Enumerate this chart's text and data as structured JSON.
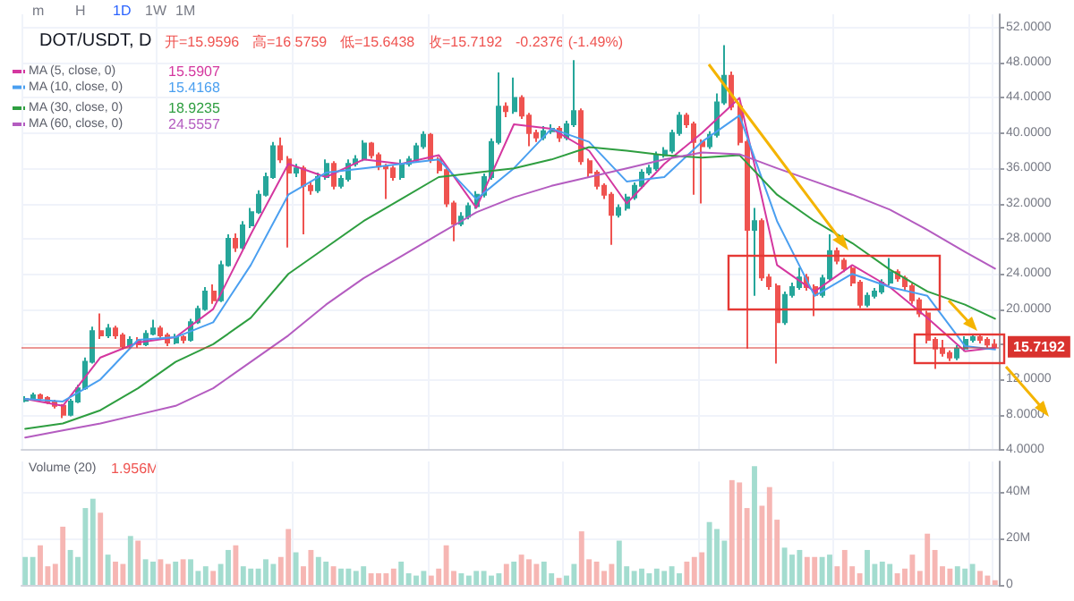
{
  "chart_data": [
    {
      "type": "candlestick",
      "title": "DOT/USDT, D",
      "categories": [
        null,
        null,
        null,
        null,
        null,
        null,
        null,
        null,
        null,
        null,
        null,
        null,
        null,
        null,
        null,
        null,
        null,
        null,
        null,
        null,
        null,
        null,
        null,
        null,
        null,
        null,
        null,
        null,
        null,
        null,
        null,
        null,
        null,
        null,
        null,
        null,
        null,
        null,
        null,
        null,
        null,
        null,
        null,
        null,
        null,
        null,
        null,
        null,
        null,
        null,
        null,
        null,
        null,
        null,
        null,
        null,
        null,
        null,
        null,
        null,
        null,
        null,
        null,
        null,
        null,
        null,
        null,
        null,
        null,
        null,
        null,
        null,
        null,
        null,
        null,
        null,
        null,
        null,
        null,
        null,
        null,
        null,
        null,
        null,
        null,
        null,
        null,
        null,
        null,
        null,
        null,
        null,
        null,
        null,
        null,
        null,
        null,
        null,
        null,
        null,
        null,
        null,
        null,
        null,
        null,
        null,
        null,
        null,
        null,
        null,
        null,
        null,
        null,
        null,
        null,
        null,
        null,
        null,
        null,
        null,
        null,
        null,
        null,
        null,
        null,
        null,
        null,
        null,
        null,
        null
      ],
      "ohlc": [
        [
          9.6,
          10.1,
          9.4,
          9.8
        ],
        [
          9.8,
          10.5,
          9.6,
          10.2
        ],
        [
          10.2,
          10.4,
          9.7,
          9.9
        ],
        [
          9.9,
          10.1,
          9.2,
          9.5
        ],
        [
          9.5,
          9.7,
          8.7,
          9.0
        ],
        [
          9.0,
          9.2,
          7.6,
          8.0
        ],
        [
          8.0,
          9.8,
          7.8,
          9.5
        ],
        [
          9.5,
          11.4,
          9.3,
          11.0
        ],
        [
          11.0,
          14.5,
          10.8,
          14.0
        ],
        [
          14.0,
          18.0,
          13.8,
          17.5
        ],
        [
          17.5,
          19.5,
          16.6,
          17.0
        ],
        [
          17.0,
          18.3,
          16.7,
          17.8
        ],
        [
          17.8,
          18.1,
          16.6,
          17.0
        ],
        [
          17.0,
          17.3,
          15.4,
          15.8
        ],
        [
          15.8,
          16.9,
          15.5,
          16.5
        ],
        [
          16.5,
          16.8,
          15.6,
          16.0
        ],
        [
          16.0,
          17.6,
          15.8,
          17.2
        ],
        [
          17.2,
          18.8,
          17.0,
          17.8
        ],
        [
          17.8,
          18.1,
          16.7,
          17.0
        ],
        [
          17.0,
          17.3,
          15.8,
          16.2
        ],
        [
          16.2,
          17.2,
          16.0,
          16.8
        ],
        [
          16.8,
          17.0,
          16.1,
          16.5
        ],
        [
          16.5,
          18.9,
          16.3,
          18.5
        ],
        [
          18.5,
          20.4,
          18.3,
          20.0
        ],
        [
          20.0,
          22.5,
          19.8,
          22.0
        ],
        [
          22.0,
          22.8,
          20.6,
          21.0
        ],
        [
          21.0,
          25.5,
          20.8,
          25.0
        ],
        [
          25.0,
          28.5,
          24.8,
          28.0
        ],
        [
          28.0,
          28.6,
          26.5,
          27.0
        ],
        [
          27.0,
          30.0,
          26.8,
          29.5
        ],
        [
          29.5,
          31.5,
          29.2,
          31.0
        ],
        [
          31.0,
          33.5,
          30.8,
          33.0
        ],
        [
          33.0,
          35.5,
          32.8,
          35.0
        ],
        [
          35.0,
          39.0,
          34.8,
          38.5
        ],
        [
          38.5,
          39.5,
          36.6,
          37.0
        ],
        [
          37.0,
          37.4,
          27.0,
          35.5
        ],
        [
          35.5,
          36.5,
          35.0,
          36.0
        ],
        [
          36.0,
          36.3,
          28.5,
          34.0
        ],
        [
          34.0,
          34.4,
          33.0,
          33.5
        ],
        [
          33.5,
          35.5,
          33.2,
          35.0
        ],
        [
          35.0,
          37.0,
          34.7,
          36.5
        ],
        [
          36.5,
          36.8,
          33.6,
          34.0
        ],
        [
          34.0,
          35.2,
          33.7,
          34.8
        ],
        [
          34.8,
          37.0,
          34.5,
          36.5
        ],
        [
          36.5,
          37.5,
          36.2,
          37.0
        ],
        [
          37.0,
          39.2,
          36.8,
          38.8
        ],
        [
          38.8,
          39.0,
          37.1,
          37.5
        ],
        [
          37.5,
          37.8,
          35.8,
          36.2
        ],
        [
          36.2,
          36.5,
          32.5,
          36.0
        ],
        [
          36.0,
          36.3,
          34.6,
          35.0
        ],
        [
          35.0,
          37.0,
          34.7,
          36.5
        ],
        [
          36.5,
          37.4,
          36.2,
          37.0
        ],
        [
          37.0,
          38.9,
          36.7,
          38.5
        ],
        [
          38.5,
          40.2,
          38.2,
          39.8
        ],
        [
          39.8,
          40.0,
          36.6,
          37.0
        ],
        [
          37.0,
          37.3,
          35.4,
          35.8
        ],
        [
          35.8,
          36.1,
          31.6,
          32.0
        ],
        [
          32.0,
          32.3,
          27.7,
          29.7
        ],
        [
          29.7,
          31.0,
          29.4,
          30.5
        ],
        [
          30.5,
          32.1,
          30.2,
          31.7
        ],
        [
          31.7,
          33.4,
          31.4,
          33.0
        ],
        [
          33.0,
          35.4,
          32.7,
          35.0
        ],
        [
          35.0,
          39.4,
          34.7,
          39.0
        ],
        [
          39.0,
          46.9,
          38.7,
          43.0
        ],
        [
          43.0,
          43.5,
          41.8,
          42.5
        ],
        [
          42.5,
          46.3,
          42.2,
          44.0
        ],
        [
          44.0,
          44.3,
          41.6,
          42.0
        ],
        [
          42.0,
          42.3,
          38.5,
          40.0
        ],
        [
          40.0,
          40.4,
          39.0,
          39.5
        ],
        [
          39.5,
          40.8,
          39.2,
          40.2
        ],
        [
          40.2,
          41.0,
          39.9,
          40.5
        ],
        [
          40.5,
          40.8,
          39.0,
          39.5
        ],
        [
          39.5,
          41.4,
          39.2,
          41.0
        ],
        [
          41.0,
          48.3,
          40.7,
          42.5
        ],
        [
          42.5,
          42.8,
          36.4,
          36.8
        ],
        [
          36.8,
          37.1,
          35.0,
          35.5
        ],
        [
          35.5,
          35.8,
          33.6,
          34.0
        ],
        [
          34.0,
          34.3,
          32.5,
          33.0
        ],
        [
          33.0,
          33.3,
          27.3,
          30.7
        ],
        [
          30.7,
          31.9,
          30.4,
          31.5
        ],
        [
          31.5,
          33.1,
          31.2,
          32.7
        ],
        [
          32.7,
          34.4,
          32.4,
          34.0
        ],
        [
          34.0,
          35.9,
          33.7,
          35.5
        ],
        [
          35.5,
          36.4,
          35.2,
          36.0
        ],
        [
          36.0,
          37.9,
          35.7,
          37.5
        ],
        [
          37.5,
          38.4,
          37.2,
          38.0
        ],
        [
          38.0,
          40.4,
          37.7,
          40.0
        ],
        [
          40.0,
          42.4,
          39.7,
          42.0
        ],
        [
          42.0,
          42.3,
          40.6,
          41.0
        ],
        [
          41.0,
          41.3,
          33.0,
          39.0
        ],
        [
          39.0,
          39.3,
          32.0,
          38.5
        ],
        [
          38.5,
          40.2,
          38.2,
          39.8
        ],
        [
          39.8,
          44.5,
          39.5,
          43.5
        ],
        [
          43.5,
          50.0,
          43.2,
          46.5
        ],
        [
          46.5,
          47.0,
          42.6,
          43.0
        ],
        [
          43.0,
          43.3,
          38.6,
          39.0
        ],
        [
          39.0,
          39.3,
          15.5,
          29.0
        ],
        [
          29.0,
          31.5,
          21.5,
          30.0
        ],
        [
          30.0,
          30.3,
          23.2,
          23.6
        ],
        [
          23.6,
          24.0,
          22.2,
          22.6
        ],
        [
          22.6,
          22.9,
          13.8,
          18.5
        ],
        [
          18.5,
          22.0,
          18.2,
          21.6
        ],
        [
          21.6,
          23.0,
          21.3,
          22.5
        ],
        [
          22.5,
          24.7,
          22.2,
          23.6
        ],
        [
          23.6,
          24.0,
          22.1,
          22.5
        ],
        [
          22.5,
          22.8,
          19.2,
          21.6
        ],
        [
          21.6,
          23.9,
          21.3,
          23.5
        ],
        [
          23.5,
          28.5,
          23.2,
          26.6
        ],
        [
          26.6,
          27.0,
          25.1,
          25.5
        ],
        [
          25.5,
          25.8,
          24.2,
          24.6
        ],
        [
          24.6,
          24.9,
          22.6,
          23.0
        ],
        [
          23.0,
          23.3,
          20.1,
          20.5
        ],
        [
          20.5,
          21.9,
          20.2,
          21.5
        ],
        [
          21.5,
          22.4,
          21.2,
          22.0
        ],
        [
          22.0,
          23.4,
          21.7,
          23.0
        ],
        [
          23.0,
          25.8,
          22.7,
          24.2
        ],
        [
          24.2,
          24.5,
          23.1,
          23.5
        ],
        [
          23.5,
          23.8,
          22.2,
          22.6
        ],
        [
          22.6,
          22.9,
          20.6,
          21.0
        ],
        [
          21.0,
          21.3,
          19.1,
          19.5
        ],
        [
          19.5,
          19.8,
          16.1,
          16.5
        ],
        [
          16.5,
          16.8,
          13.2,
          15.5
        ],
        [
          15.5,
          16.5,
          14.6,
          15.0
        ],
        [
          15.0,
          15.3,
          14.1,
          14.5
        ],
        [
          14.5,
          15.9,
          14.2,
          15.5
        ],
        [
          15.5,
          16.9,
          15.2,
          16.5
        ],
        [
          16.5,
          17.2,
          16.2,
          16.8
        ],
        [
          16.8,
          17.1,
          16.1,
          16.5
        ],
        [
          16.5,
          16.8,
          15.6,
          15.9596
        ],
        [
          15.9596,
          16.5759,
          15.6438,
          15.7192
        ]
      ],
      "colors": [
        "#26a69a",
        "#26a69a",
        "#ef5350",
        "#ef5350",
        "#ef5350",
        "#ef5350",
        "#26a69a",
        "#26a69a",
        "#26a69a",
        "#26a69a",
        "#ef5350",
        "#26a69a",
        "#ef5350",
        "#ef5350",
        "#26a69a",
        "#ef5350",
        "#26a69a",
        "#26a69a",
        "#ef5350",
        "#ef5350",
        "#26a69a",
        "#ef5350",
        "#26a69a",
        "#26a69a",
        "#26a69a",
        "#ef5350",
        "#26a69a",
        "#26a69a",
        "#ef5350",
        "#26a69a",
        "#26a69a",
        "#26a69a",
        "#26a69a",
        "#26a69a",
        "#ef5350",
        "#ef5350",
        "#26a69a",
        "#ef5350",
        "#ef5350",
        "#26a69a",
        "#26a69a",
        "#ef5350",
        "#26a69a",
        "#26a69a",
        "#26a69a",
        "#26a69a",
        "#ef5350",
        "#ef5350",
        "#ef5350",
        "#ef5350",
        "#26a69a",
        "#26a69a",
        "#26a69a",
        "#26a69a",
        "#ef5350",
        "#ef5350",
        "#ef5350",
        "#ef5350",
        "#26a69a",
        "#26a69a",
        "#26a69a",
        "#26a69a",
        "#26a69a",
        "#26a69a",
        "#ef5350",
        "#26a69a",
        "#ef5350",
        "#ef5350",
        "#ef5350",
        "#26a69a",
        "#26a69a",
        "#ef5350",
        "#26a69a",
        "#26a69a",
        "#ef5350",
        "#ef5350",
        "#ef5350",
        "#ef5350",
        "#ef5350",
        "#26a69a",
        "#26a69a",
        "#26a69a",
        "#26a69a",
        "#26a69a",
        "#26a69a",
        "#26a69a",
        "#26a69a",
        "#26a69a",
        "#ef5350",
        "#ef5350",
        "#ef5350",
        "#26a69a",
        "#26a69a",
        "#26a69a",
        "#ef5350",
        "#ef5350",
        "#ef5350",
        "#26a69a",
        "#ef5350",
        "#ef5350",
        "#ef5350",
        "#26a69a",
        "#26a69a",
        "#26a69a",
        "#ef5350",
        "#ef5350",
        "#26a69a",
        "#26a69a",
        "#ef5350",
        "#ef5350",
        "#ef5350",
        "#ef5350",
        "#26a69a",
        "#26a69a",
        "#26a69a",
        "#26a69a",
        "#ef5350",
        "#ef5350",
        "#ef5350",
        "#ef5350",
        "#ef5350",
        "#ef5350",
        "#ef5350",
        "#ef5350",
        "#26a69a",
        "#26a69a",
        "#26a69a",
        "#ef5350",
        "#ef5350",
        "#ef5350"
      ],
      "series": [
        {
          "type": "line",
          "name": "MA (5, close, 0)",
          "color": "#d4379f",
          "values": [
            9.8,
            null,
            null,
            null,
            null,
            9.0,
            null,
            null,
            null,
            null,
            14.5,
            null,
            null,
            null,
            null,
            16.2,
            null,
            null,
            null,
            null,
            16.8,
            null,
            null,
            null,
            null,
            20,
            null,
            null,
            null,
            null,
            28.5,
            null,
            null,
            null,
            null,
            36.5,
            null,
            null,
            null,
            null,
            35,
            null,
            null,
            null,
            null,
            37,
            null,
            null,
            null,
            null,
            36.5,
            null,
            null,
            null,
            null,
            37.5,
            null,
            null,
            null,
            null,
            31.5,
            null,
            null,
            null,
            null,
            41,
            null,
            null,
            null,
            null,
            40.5,
            null,
            null,
            null,
            null,
            38,
            null,
            null,
            null,
            null,
            32,
            null,
            null,
            null,
            null,
            36.5,
            null,
            null,
            null,
            null,
            40,
            null,
            null,
            null,
            null,
            44,
            null,
            null,
            null,
            null,
            25,
            null,
            null,
            null,
            null,
            22,
            null,
            null,
            null,
            null,
            25,
            null,
            null,
            null,
            null,
            22.5,
            null,
            null,
            null,
            null,
            19,
            null,
            null,
            null,
            null,
            15.2,
            null,
            null,
            null,
            15.6
          ]
        },
        {
          "type": "line",
          "name": "MA (10, close, 0)",
          "color": "#4a9ff0",
          "values": [
            9.8,
            null,
            null,
            null,
            null,
            9.5,
            null,
            null,
            null,
            null,
            12,
            null,
            null,
            null,
            null,
            16.5,
            null,
            null,
            null,
            null,
            16.8,
            null,
            null,
            null,
            null,
            18.5,
            null,
            null,
            null,
            null,
            25,
            null,
            null,
            null,
            null,
            33,
            null,
            null,
            null,
            null,
            35.5,
            null,
            null,
            null,
            null,
            36,
            null,
            null,
            null,
            null,
            36.5,
            null,
            null,
            null,
            null,
            37,
            null,
            null,
            null,
            null,
            32.5,
            null,
            null,
            null,
            null,
            36,
            null,
            null,
            null,
            null,
            40.5,
            null,
            null,
            null,
            null,
            39,
            null,
            null,
            null,
            null,
            34.5,
            null,
            null,
            null,
            null,
            35,
            null,
            null,
            null,
            null,
            39,
            null,
            null,
            null,
            null,
            42,
            null,
            null,
            null,
            null,
            30,
            null,
            null,
            null,
            null,
            21.5,
            null,
            null,
            null,
            null,
            24,
            null,
            null,
            null,
            null,
            22.5,
            null,
            null,
            null,
            null,
            21.5,
            null,
            null,
            null,
            null,
            15.8,
            null,
            null,
            null,
            15.4
          ]
        },
        {
          "type": "line",
          "name": "MA (30, close, 0)",
          "color": "#2e9e40",
          "values": [
            6.4,
            null,
            null,
            null,
            null,
            7,
            null,
            null,
            null,
            null,
            8.5,
            null,
            null,
            null,
            null,
            11,
            null,
            null,
            null,
            null,
            14,
            null,
            null,
            null,
            null,
            16,
            null,
            null,
            null,
            null,
            19,
            null,
            null,
            null,
            null,
            24,
            null,
            null,
            null,
            null,
            27,
            null,
            null,
            null,
            null,
            30,
            null,
            null,
            null,
            null,
            32.5,
            null,
            null,
            null,
            null,
            35,
            null,
            null,
            null,
            null,
            35.5,
            null,
            null,
            null,
            null,
            36,
            null,
            null,
            null,
            null,
            37,
            null,
            null,
            null,
            null,
            38.4,
            null,
            null,
            null,
            null,
            38,
            null,
            null,
            null,
            null,
            37.5,
            null,
            null,
            null,
            null,
            37.2,
            null,
            null,
            null,
            null,
            37.5,
            null,
            null,
            null,
            null,
            33,
            null,
            null,
            null,
            null,
            30,
            null,
            null,
            null,
            null,
            27.5,
            null,
            null,
            null,
            null,
            24.5,
            null,
            null,
            null,
            null,
            22,
            null,
            null,
            null,
            null,
            20.5,
            null,
            null,
            null,
            18.9
          ]
        },
        {
          "type": "line",
          "name": "MA (60, close, 0)",
          "color": "#b45cc0",
          "values": [
            5.4,
            null,
            null,
            null,
            null,
            6.2,
            null,
            null,
            null,
            null,
            7,
            null,
            null,
            null,
            null,
            8,
            null,
            null,
            null,
            null,
            9,
            null,
            null,
            null,
            null,
            11,
            null,
            null,
            null,
            null,
            14,
            null,
            null,
            null,
            null,
            17,
            null,
            null,
            null,
            null,
            20.5,
            null,
            null,
            null,
            null,
            23.5,
            null,
            null,
            null,
            null,
            26,
            null,
            null,
            null,
            null,
            28.5,
            null,
            null,
            null,
            null,
            31,
            null,
            null,
            null,
            null,
            32.7,
            null,
            null,
            null,
            null,
            34,
            null,
            null,
            null,
            null,
            35,
            null,
            null,
            null,
            null,
            36,
            null,
            null,
            null,
            null,
            37,
            null,
            null,
            null,
            null,
            37.8,
            null,
            null,
            null,
            null,
            37.6,
            null,
            null,
            null,
            null,
            36,
            null,
            null,
            null,
            null,
            34.5,
            null,
            null,
            null,
            null,
            33,
            null,
            null,
            null,
            null,
            31.3,
            null,
            null,
            null,
            null,
            29,
            null,
            null,
            null,
            null,
            26.5,
            null,
            null,
            null,
            24.6
          ]
        }
      ],
      "ylim": [
        4,
        53.5
      ],
      "yticks": [
        {
          "value": 4,
          "label": "4.0000"
        },
        {
          "value": 8,
          "label": "8.0000"
        },
        {
          "value": 12,
          "label": "12.0000"
        },
        {
          "value": 16,
          "label": null
        },
        {
          "value": 20,
          "label": "20.0000"
        },
        {
          "value": 24,
          "label": "24.0000"
        },
        {
          "value": 28,
          "label": "28.0000"
        },
        {
          "value": 32,
          "label": "32.0000"
        },
        {
          "value": 36,
          "label": "36.0000"
        },
        {
          "value": 40,
          "label": "40.0000"
        },
        {
          "value": 44,
          "label": "44.0000"
        },
        {
          "value": 48,
          "label": "48.0000"
        },
        {
          "value": 52,
          "label": "52.0000"
        }
      ],
      "ref_lines": [
        {
          "axis": "y",
          "value": 15.7192,
          "label": "15.7192",
          "color": "#d9322e"
        }
      ],
      "grid": true,
      "legend": "top left",
      "tick_labels": "y",
      "line_style": "solid",
      "annotations": [
        "m",
        "H",
        "1D",
        "1W",
        "1M",
        "开=15.9596",
        "高=16.5759",
        "低=15.6438",
        "收=15.7192",
        "-0.2376 (-1.49%)",
        "15.5907",
        "15.4168",
        "18.9235",
        "24.5557"
      ]
    },
    {
      "type": "bar",
      "categories": [
        null,
        null,
        null,
        null,
        null,
        null,
        null,
        null,
        null,
        null,
        null,
        null,
        null,
        null,
        null,
        null,
        null,
        null,
        null,
        null,
        null,
        null,
        null,
        null,
        null,
        null,
        null,
        null,
        null,
        null,
        null,
        null,
        null,
        null,
        null,
        null,
        null,
        null,
        null,
        null,
        null,
        null,
        null,
        null,
        null,
        null,
        null,
        null,
        null,
        null,
        null,
        null,
        null,
        null,
        null,
        null,
        null,
        null,
        null,
        null,
        null,
        null,
        null,
        null,
        null,
        null,
        null,
        null,
        null,
        null,
        null,
        null,
        null,
        null,
        null,
        null,
        null,
        null,
        null,
        null,
        null,
        null,
        null,
        null,
        null,
        null,
        null,
        null,
        null,
        null,
        null,
        null,
        null,
        null,
        null,
        null,
        null,
        null,
        null,
        null,
        null,
        null,
        null,
        null,
        null,
        null,
        null,
        null,
        null,
        null,
        null,
        null,
        null,
        null,
        null,
        null,
        null,
        null,
        null,
        null,
        null,
        null,
        null,
        null,
        null,
        null,
        null,
        null,
        null,
        null
      ],
      "series": [
        {
          "name": "Volume (20)",
          "values": [
            12,
            12,
            17,
            8,
            9,
            25,
            15,
            12,
            33,
            37,
            31,
            13,
            10,
            9,
            21,
            19,
            11,
            10,
            11,
            9,
            10,
            11,
            11,
            6,
            8,
            6,
            9,
            15,
            17,
            8,
            7,
            7,
            11,
            9,
            12,
            24,
            14,
            8,
            15,
            12,
            10,
            8,
            7,
            7,
            6,
            8,
            5,
            5,
            5,
            7,
            10,
            5,
            4,
            6,
            4,
            7,
            17,
            6,
            5,
            4,
            6,
            6,
            4,
            5,
            9,
            10,
            13,
            11,
            9,
            10,
            5,
            3,
            4,
            9,
            23,
            11,
            10,
            6,
            9,
            19,
            8,
            6,
            7,
            5,
            7,
            6,
            8,
            5,
            10,
            12,
            14,
            27,
            24,
            19,
            45,
            44,
            33,
            51,
            34,
            42,
            28,
            16,
            13,
            15,
            12,
            12,
            12,
            13,
            8,
            15,
            8,
            5,
            15,
            9,
            10,
            9,
            5,
            7,
            13,
            6,
            22,
            15,
            8,
            7,
            8,
            7,
            9,
            6,
            4,
            2
          ],
          "colors": [
            "#a3dccf",
            "#a3dccf",
            "#f6b6b3",
            "#f6b6b3",
            "#f6b6b3",
            "#f6b6b3",
            "#a3dccf",
            "#a3dccf",
            "#a3dccf",
            "#a3dccf",
            "#f6b6b3",
            "#a3dccf",
            "#f6b6b3",
            "#f6b6b3",
            "#a3dccf",
            "#f6b6b3",
            "#a3dccf",
            "#a3dccf",
            "#f6b6b3",
            "#f6b6b3",
            "#a3dccf",
            "#f6b6b3",
            "#a3dccf",
            "#a3dccf",
            "#a3dccf",
            "#f6b6b3",
            "#a3dccf",
            "#a3dccf",
            "#f6b6b3",
            "#a3dccf",
            "#a3dccf",
            "#a3dccf",
            "#a3dccf",
            "#a3dccf",
            "#f6b6b3",
            "#f6b6b3",
            "#a3dccf",
            "#f6b6b3",
            "#f6b6b3",
            "#a3dccf",
            "#a3dccf",
            "#f6b6b3",
            "#a3dccf",
            "#a3dccf",
            "#a3dccf",
            "#a3dccf",
            "#f6b6b3",
            "#f6b6b3",
            "#f6b6b3",
            "#f6b6b3",
            "#a3dccf",
            "#a3dccf",
            "#a3dccf",
            "#a3dccf",
            "#f6b6b3",
            "#f6b6b3",
            "#f6b6b3",
            "#f6b6b3",
            "#a3dccf",
            "#a3dccf",
            "#a3dccf",
            "#a3dccf",
            "#a3dccf",
            "#a3dccf",
            "#f6b6b3",
            "#a3dccf",
            "#f6b6b3",
            "#f6b6b3",
            "#f6b6b3",
            "#a3dccf",
            "#a3dccf",
            "#f6b6b3",
            "#a3dccf",
            "#a3dccf",
            "#f6b6b3",
            "#f6b6b3",
            "#f6b6b3",
            "#f6b6b3",
            "#f6b6b3",
            "#a3dccf",
            "#a3dccf",
            "#a3dccf",
            "#a3dccf",
            "#a3dccf",
            "#a3dccf",
            "#a3dccf",
            "#a3dccf",
            "#a3dccf",
            "#f6b6b3",
            "#f6b6b3",
            "#f6b6b3",
            "#a3dccf",
            "#a3dccf",
            "#a3dccf",
            "#f6b6b3",
            "#f6b6b3",
            "#f6b6b3",
            "#a3dccf",
            "#f6b6b3",
            "#f6b6b3",
            "#f6b6b3",
            "#a3dccf",
            "#a3dccf",
            "#a3dccf",
            "#f6b6b3",
            "#f6b6b3",
            "#a3dccf",
            "#a3dccf",
            "#f6b6b3",
            "#f6b6b3",
            "#f6b6b3",
            "#f6b6b3",
            "#a3dccf",
            "#a3dccf",
            "#a3dccf",
            "#a3dccf",
            "#f6b6b3",
            "#f6b6b3",
            "#f6b6b3",
            "#f6b6b3",
            "#f6b6b3",
            "#f6b6b3",
            "#f6b6b3",
            "#f6b6b3",
            "#a3dccf",
            "#a3dccf",
            "#a3dccf",
            "#f6b6b3",
            "#f6b6b3",
            "#f6b6b3"
          ]
        }
      ],
      "ylim": [
        0,
        53
      ],
      "yticks": [
        {
          "value": 0,
          "label": "0"
        },
        {
          "value": 20,
          "label": "20M"
        },
        {
          "value": 40,
          "label": "40M"
        }
      ],
      "grid": true,
      "legend": "top left",
      "tick_labels": "y",
      "annotations": [
        "1.956M"
      ]
    }
  ]
}
